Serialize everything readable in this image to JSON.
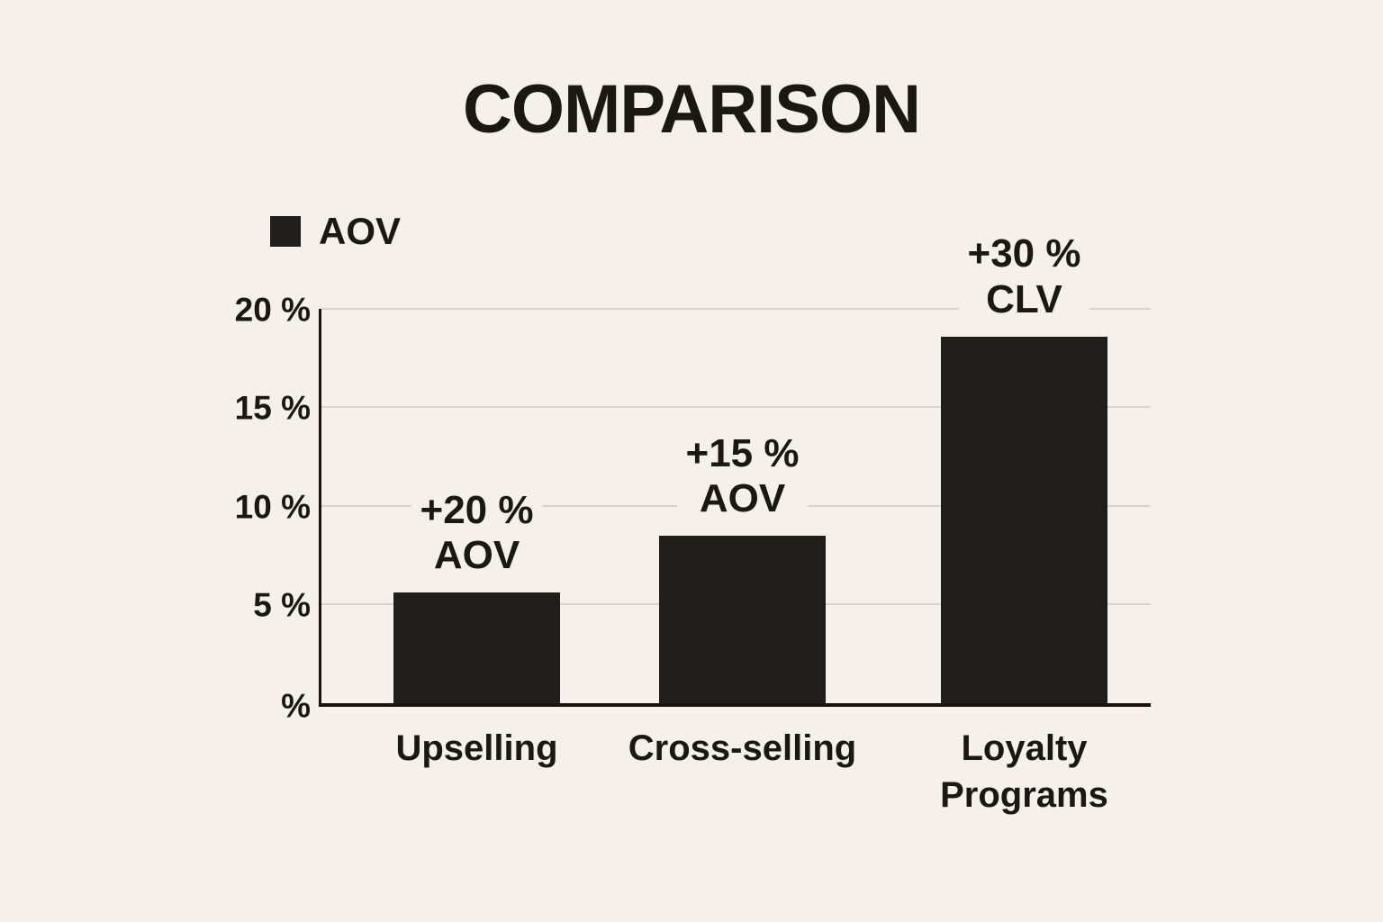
{
  "colors": {
    "background": "#f5f1ea",
    "bar": "#211d1b",
    "text": "#1b1713",
    "grid": "#d8d4cd",
    "axis": "#16120f"
  },
  "chart_data": {
    "type": "bar",
    "title": "COMPARISON",
    "categories": [
      "Upselling",
      "Cross-selling",
      "Loyalty\nPrograms"
    ],
    "values": [
      5.6,
      8.5,
      18.6
    ],
    "annotations": [
      "+20 %\nAOV",
      "+15 %\nAOV",
      "+30 %\nCLV"
    ],
    "ytick_labels": [
      "20 %",
      "15 %",
      "10 %",
      "5 %",
      "%"
    ],
    "ylim": [
      0,
      20
    ],
    "xlabel": "",
    "ylabel": "",
    "grid": true,
    "bar_color": "#211d1b",
    "legend": {
      "position": "top-left",
      "entries": [
        {
          "label": "AOV",
          "color": "#211d1b"
        }
      ]
    }
  }
}
